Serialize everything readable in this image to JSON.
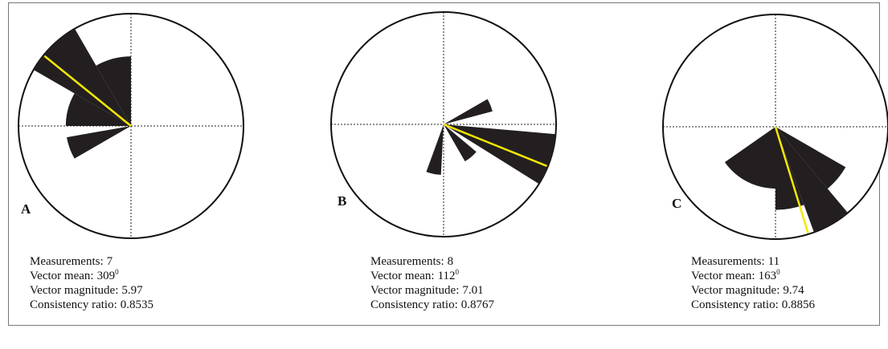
{
  "chart_data": [
    {
      "type": "rose",
      "label": "A",
      "rlim": [
        0,
        1
      ],
      "bins": [
        [
          240,
          260
        ],
        [
          270,
          300
        ],
        [
          300,
          330
        ],
        [
          330,
          360
        ]
      ],
      "values": [
        0.58,
        0.58,
        1.0,
        0.62
      ],
      "color": "#231f20",
      "mean_color": "#f5e800",
      "stats": [
        {
          "label": "Measurements:",
          "value": 7
        },
        {
          "label": "Vector mean:",
          "value": 309,
          "unit": "0"
        },
        {
          "label": "Vector magnitude:",
          "value": 5.97
        },
        {
          "label": "Consistency ratio:",
          "value": 0.8535
        }
      ]
    },
    {
      "type": "rose",
      "label": "B",
      "rlim": [
        0,
        1
      ],
      "bins": [
        [
          60,
          75
        ],
        [
          95,
          122
        ],
        [
          130,
          150
        ],
        [
          183,
          200
        ]
      ],
      "values": [
        0.45,
        1.0,
        0.38,
        0.45
      ],
      "color": "#231f20",
      "mean_color": "#f5e800",
      "stats": [
        {
          "label": "Measurements:",
          "value": 8
        },
        {
          "label": "Vector mean:",
          "value": 112,
          "unit": "0"
        },
        {
          "label": "Vector magnitude:",
          "value": 7.01
        },
        {
          "label": "Consistency ratio:",
          "value": 0.8767
        }
      ]
    },
    {
      "type": "rose",
      "label": "C",
      "rlim": [
        0,
        1
      ],
      "bins": [
        [
          120,
          140
        ],
        [
          140,
          160
        ],
        [
          160,
          180
        ],
        [
          180,
          235
        ]
      ],
      "values": [
        0.72,
        1.0,
        0.74,
        0.55
      ],
      "color": "#231f20",
      "mean_color": "#f5e800",
      "stats": [
        {
          "label": "Measurements:",
          "value": 11
        },
        {
          "label": "Vector mean:",
          "value": 163,
          "unit": "0"
        },
        {
          "label": "Vector magnitude:",
          "value": 9.74
        },
        {
          "label": "Consistency ratio:",
          "value": 0.8856
        }
      ]
    }
  ]
}
